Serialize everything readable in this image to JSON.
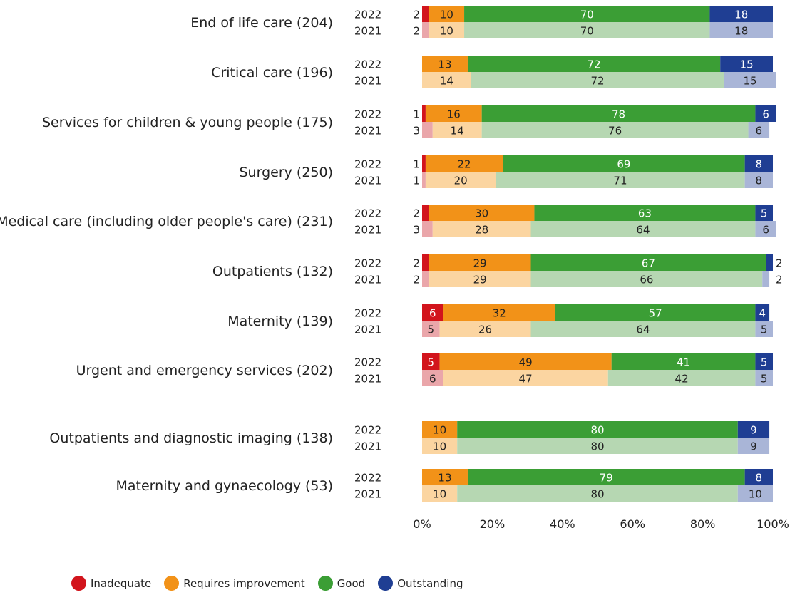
{
  "chart_data": {
    "type": "bar",
    "orientation": "horizontal",
    "stacked": true,
    "xlim": [
      0,
      100
    ],
    "x_ticks": [
      "0%",
      "20%",
      "40%",
      "60%",
      "80%",
      "100%"
    ],
    "legend_position": "bottom-left",
    "series": [
      {
        "name": "Inadequate",
        "color_2022": "#d2141c",
        "color_2021": "#eaa6aa"
      },
      {
        "name": "Requires improvement",
        "color_2022": "#f29218",
        "color_2021": "#fbd5a1"
      },
      {
        "name": "Good",
        "color_2022": "#3b9e35",
        "color_2021": "#b6d7b2"
      },
      {
        "name": "Outstanding",
        "color_2022": "#1f3e93",
        "color_2021": "#a9b5d7"
      }
    ],
    "categories": [
      {
        "label": "End of life care (204)",
        "rows": [
          {
            "year": "2022",
            "values": [
              2,
              10,
              70,
              18
            ]
          },
          {
            "year": "2021",
            "values": [
              2,
              10,
              70,
              18
            ]
          }
        ]
      },
      {
        "label": "Critical care (196)",
        "rows": [
          {
            "year": "2022",
            "values": [
              0,
              13,
              72,
              15
            ]
          },
          {
            "year": "2021",
            "values": [
              0,
              14,
              72,
              15
            ]
          }
        ]
      },
      {
        "label": "Services for children & young people (175)",
        "rows": [
          {
            "year": "2022",
            "values": [
              1,
              16,
              78,
              6
            ]
          },
          {
            "year": "2021",
            "values": [
              3,
              14,
              76,
              6
            ]
          }
        ]
      },
      {
        "label": "Surgery (250)",
        "rows": [
          {
            "year": "2022",
            "values": [
              1,
              22,
              69,
              8
            ]
          },
          {
            "year": "2021",
            "values": [
              1,
              20,
              71,
              8
            ]
          }
        ]
      },
      {
        "label": "Medical care (including older people's care) (231)",
        "rows": [
          {
            "year": "2022",
            "values": [
              2,
              30,
              63,
              5
            ]
          },
          {
            "year": "2021",
            "values": [
              3,
              28,
              64,
              6
            ]
          }
        ]
      },
      {
        "label": "Outpatients (132)",
        "rows": [
          {
            "year": "2022",
            "values": [
              2,
              29,
              67,
              2
            ]
          },
          {
            "year": "2021",
            "values": [
              2,
              29,
              66,
              2
            ]
          }
        ]
      },
      {
        "label": "Maternity (139)",
        "rows": [
          {
            "year": "2022",
            "values": [
              6,
              32,
              57,
              4
            ]
          },
          {
            "year": "2021",
            "values": [
              5,
              26,
              64,
              5
            ]
          }
        ]
      },
      {
        "label": "Urgent and emergency services (202)",
        "rows": [
          {
            "year": "2022",
            "values": [
              5,
              49,
              41,
              5
            ]
          },
          {
            "year": "2021",
            "values": [
              6,
              47,
              42,
              5
            ]
          }
        ]
      },
      {
        "label": "Outpatients and diagnostic imaging (138)",
        "rows": [
          {
            "year": "2022",
            "values": [
              0,
              10,
              80,
              9
            ]
          },
          {
            "year": "2021",
            "values": [
              0,
              10,
              80,
              9
            ]
          }
        ]
      },
      {
        "label": "Maternity and gynaecology (53)",
        "rows": [
          {
            "year": "2022",
            "values": [
              0,
              13,
              79,
              8
            ]
          },
          {
            "year": "2021",
            "values": [
              0,
              10,
              80,
              10
            ]
          }
        ]
      }
    ]
  }
}
